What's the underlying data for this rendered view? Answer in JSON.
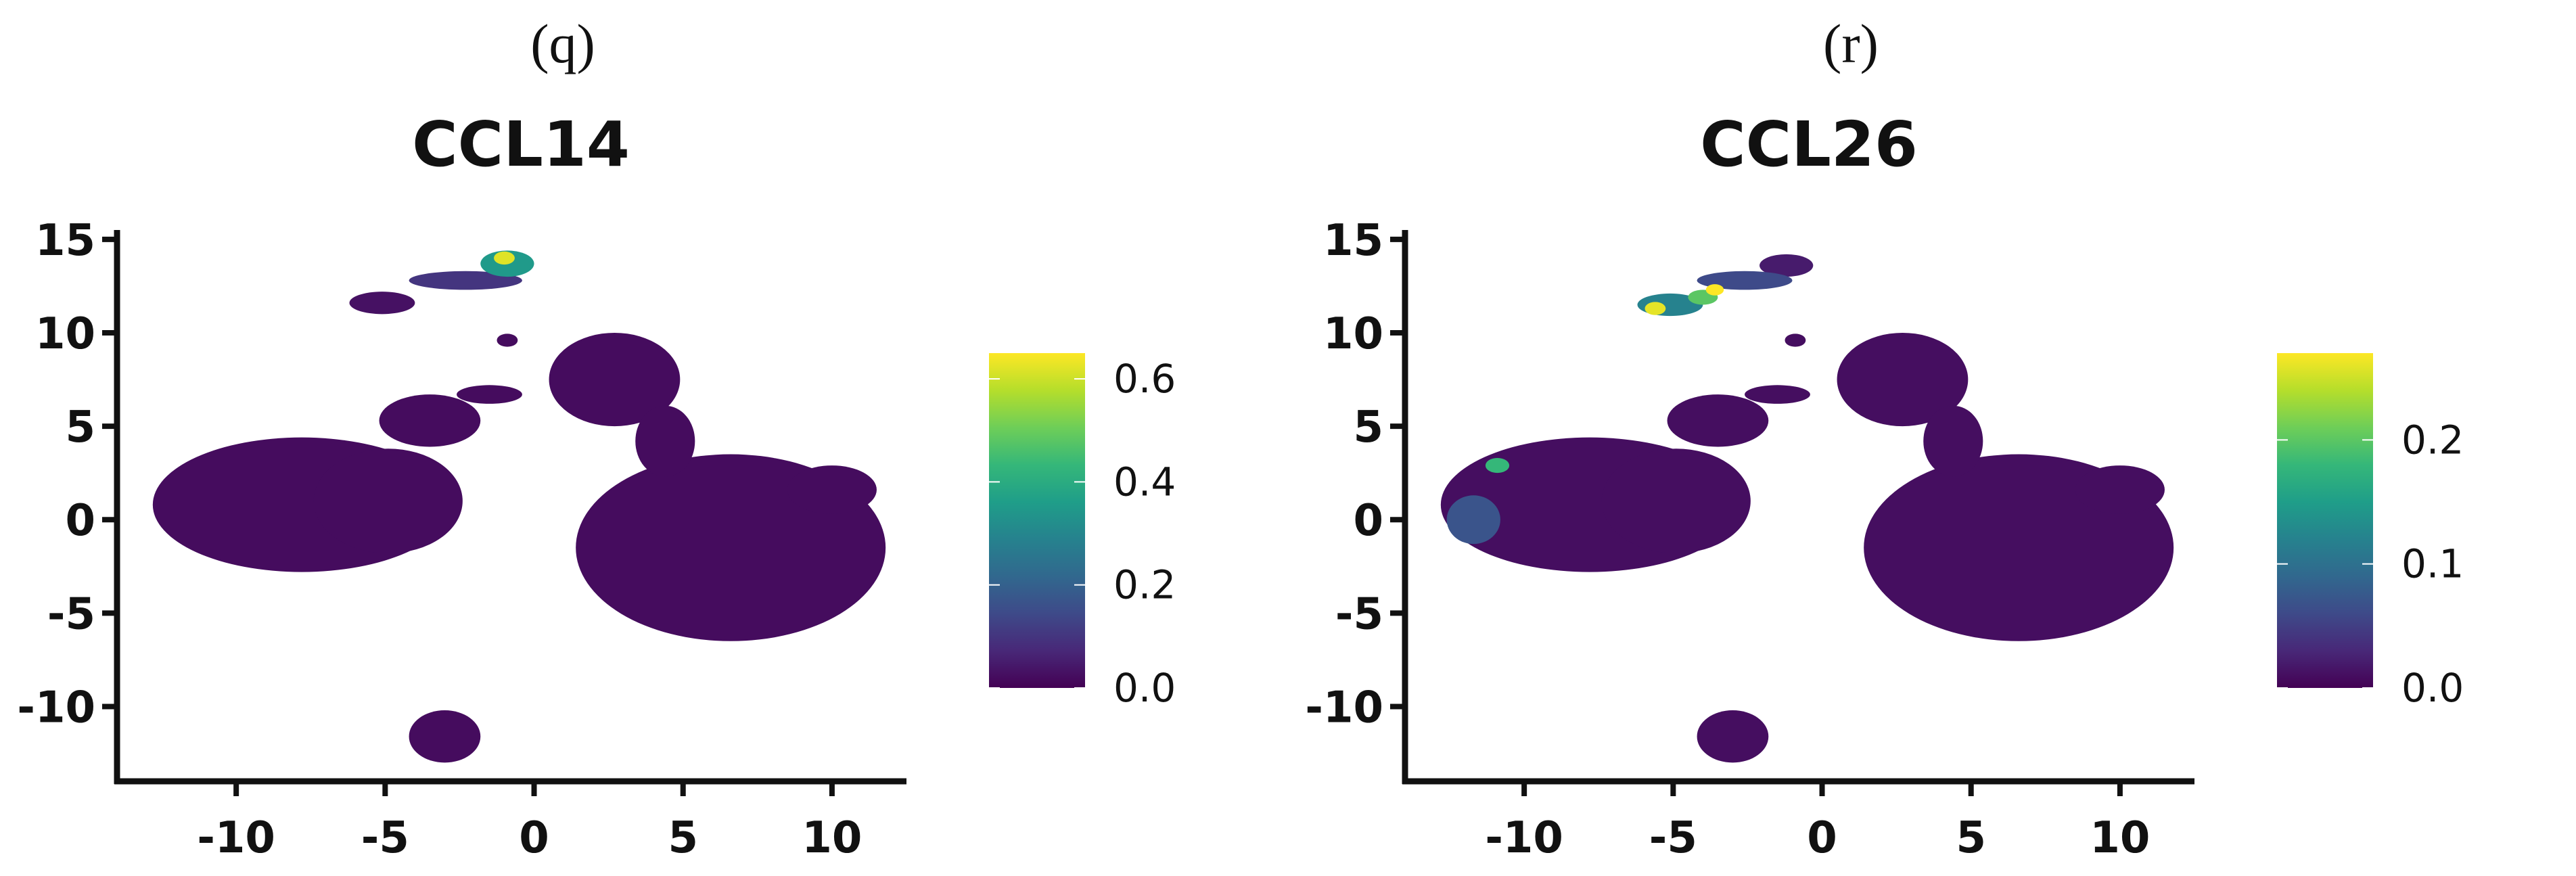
{
  "chart_data": [
    {
      "type": "scatter",
      "panel_label": "(q)",
      "title": "CCL14",
      "xlabel": "",
      "ylabel": "",
      "xlim": [
        -14,
        12.5
      ],
      "ylim": [
        -14,
        15.5
      ],
      "x_ticks": [
        -10,
        -5,
        0,
        5,
        10
      ],
      "x_tick_labels": [
        "-10",
        "-5",
        "0",
        "5",
        "10"
      ],
      "y_ticks": [
        15,
        10,
        5,
        0,
        -5,
        -10
      ],
      "y_tick_labels": [
        "15",
        "10",
        "5",
        "0",
        "-5",
        "-10"
      ],
      "colormap": "viridis",
      "colorbar": {
        "min": 0.0,
        "max": 0.65,
        "ticks": [
          0.0,
          0.2,
          0.4,
          0.6
        ],
        "tick_labels": [
          "0.0",
          "0.2",
          "0.4",
          "0.6"
        ]
      },
      "grid": false,
      "clusters": [
        {
          "shape": "ellipse",
          "cx": -7.8,
          "cy": 0.8,
          "rx": 5.0,
          "ry": 3.6,
          "value": 0.02
        },
        {
          "shape": "ellipse",
          "cx": -4.9,
          "cy": 1.0,
          "rx": 2.5,
          "ry": 2.8,
          "value": 0.02
        },
        {
          "shape": "ellipse",
          "cx": 6.6,
          "cy": -1.5,
          "rx": 5.2,
          "ry": 5.0,
          "value": 0.02
        },
        {
          "shape": "ellipse",
          "cx": 10.0,
          "cy": 1.6,
          "rx": 1.5,
          "ry": 1.3,
          "value": 0.02
        },
        {
          "shape": "ellipse",
          "cx": 2.7,
          "cy": 7.5,
          "rx": 2.2,
          "ry": 2.5,
          "value": 0.02
        },
        {
          "shape": "ellipse",
          "cx": 4.4,
          "cy": 4.2,
          "rx": 1.0,
          "ry": 1.9,
          "value": 0.02
        },
        {
          "shape": "ellipse",
          "cx": -3.5,
          "cy": 5.3,
          "rx": 1.7,
          "ry": 1.4,
          "value": 0.02
        },
        {
          "shape": "ellipse",
          "cx": -1.5,
          "cy": 6.7,
          "rx": 1.1,
          "ry": 0.5,
          "value": 0.02
        },
        {
          "shape": "ellipse",
          "cx": -0.9,
          "cy": 9.6,
          "rx": 0.35,
          "ry": 0.35,
          "value": 0.02
        },
        {
          "shape": "ellipse",
          "cx": -3.0,
          "cy": -11.6,
          "rx": 1.2,
          "ry": 1.4,
          "value": 0.02
        },
        {
          "shape": "ellipse",
          "cx": -5.1,
          "cy": 11.6,
          "rx": 1.1,
          "ry": 0.6,
          "value": 0.03
        },
        {
          "shape": "ellipse",
          "cx": -2.3,
          "cy": 12.8,
          "rx": 1.9,
          "ry": 0.5,
          "value": 0.1
        },
        {
          "shape": "ellipse",
          "cx": -0.9,
          "cy": 13.7,
          "rx": 0.9,
          "ry": 0.7,
          "value": 0.35
        },
        {
          "shape": "ellipse",
          "cx": -1.0,
          "cy": 14.0,
          "rx": 0.35,
          "ry": 0.35,
          "value": 0.62
        }
      ]
    },
    {
      "type": "scatter",
      "panel_label": "(r)",
      "title": "CCL26",
      "xlabel": "",
      "ylabel": "",
      "xlim": [
        -14,
        12.5
      ],
      "ylim": [
        -14,
        15.5
      ],
      "x_ticks": [
        -10,
        -5,
        0,
        5,
        10
      ],
      "x_tick_labels": [
        "-10",
        "-5",
        "0",
        "5",
        "10"
      ],
      "y_ticks": [
        15,
        10,
        5,
        0,
        -5,
        -10
      ],
      "y_tick_labels": [
        "15",
        "10",
        "5",
        "0",
        "-5",
        "-10"
      ],
      "colormap": "viridis",
      "colorbar": {
        "min": 0.0,
        "max": 0.27,
        "ticks": [
          0.0,
          0.1,
          0.2
        ],
        "tick_labels": [
          "0.0",
          "0.1",
          "0.2"
        ]
      },
      "grid": false,
      "clusters": [
        {
          "shape": "ellipse",
          "cx": -7.8,
          "cy": 0.8,
          "rx": 5.0,
          "ry": 3.6,
          "value": 0.01
        },
        {
          "shape": "ellipse",
          "cx": -4.9,
          "cy": 1.0,
          "rx": 2.5,
          "ry": 2.8,
          "value": 0.01
        },
        {
          "shape": "ellipse",
          "cx": -11.7,
          "cy": 0.0,
          "rx": 0.9,
          "ry": 1.3,
          "value": 0.07
        },
        {
          "shape": "ellipse",
          "cx": -10.9,
          "cy": 2.9,
          "rx": 0.4,
          "ry": 0.4,
          "value": 0.18
        },
        {
          "shape": "ellipse",
          "cx": 6.6,
          "cy": -1.5,
          "rx": 5.2,
          "ry": 5.0,
          "value": 0.01
        },
        {
          "shape": "ellipse",
          "cx": 10.0,
          "cy": 1.6,
          "rx": 1.5,
          "ry": 1.3,
          "value": 0.01
        },
        {
          "shape": "ellipse",
          "cx": 2.7,
          "cy": 7.5,
          "rx": 2.2,
          "ry": 2.5,
          "value": 0.01
        },
        {
          "shape": "ellipse",
          "cx": 4.4,
          "cy": 4.2,
          "rx": 1.0,
          "ry": 1.9,
          "value": 0.01
        },
        {
          "shape": "ellipse",
          "cx": -3.5,
          "cy": 5.3,
          "rx": 1.7,
          "ry": 1.4,
          "value": 0.01
        },
        {
          "shape": "ellipse",
          "cx": -1.5,
          "cy": 6.7,
          "rx": 1.1,
          "ry": 0.5,
          "value": 0.01
        },
        {
          "shape": "ellipse",
          "cx": -0.9,
          "cy": 9.6,
          "rx": 0.35,
          "ry": 0.35,
          "value": 0.01
        },
        {
          "shape": "ellipse",
          "cx": -3.0,
          "cy": -11.6,
          "rx": 1.2,
          "ry": 1.4,
          "value": 0.01
        },
        {
          "shape": "ellipse",
          "cx": -1.2,
          "cy": 13.6,
          "rx": 0.9,
          "ry": 0.6,
          "value": 0.02
        },
        {
          "shape": "ellipse",
          "cx": -2.6,
          "cy": 12.8,
          "rx": 1.6,
          "ry": 0.5,
          "value": 0.06
        },
        {
          "shape": "ellipse",
          "cx": -5.1,
          "cy": 11.5,
          "rx": 1.1,
          "ry": 0.6,
          "value": 0.12
        },
        {
          "shape": "ellipse",
          "cx": -4.0,
          "cy": 11.9,
          "rx": 0.5,
          "ry": 0.4,
          "value": 0.2
        },
        {
          "shape": "ellipse",
          "cx": -5.6,
          "cy": 11.3,
          "rx": 0.35,
          "ry": 0.35,
          "value": 0.26
        },
        {
          "shape": "ellipse",
          "cx": -3.6,
          "cy": 12.3,
          "rx": 0.3,
          "ry": 0.3,
          "value": 0.27
        }
      ]
    }
  ]
}
